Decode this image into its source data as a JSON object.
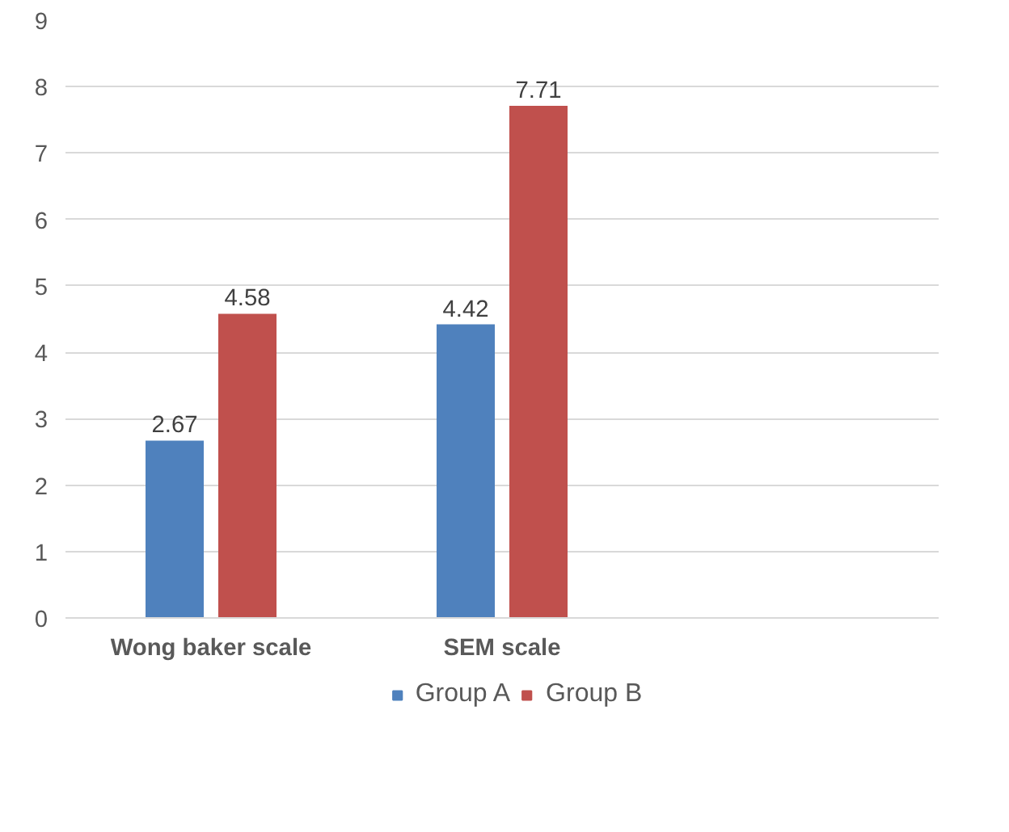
{
  "chart_data": {
    "type": "bar",
    "categories": [
      "Wong baker scale",
      "SEM scale",
      null
    ],
    "series": [
      {
        "name": "Group A",
        "color": "#4f81bd",
        "values": [
          2.67,
          4.42,
          null
        ]
      },
      {
        "name": "Group B",
        "color": "#c0504d",
        "values": [
          4.58,
          7.71,
          null
        ]
      }
    ],
    "ylim": [
      0,
      9
    ],
    "yticks": [
      0,
      1,
      2,
      3,
      4,
      5,
      6,
      7,
      8,
      9
    ],
    "grid": "y",
    "legend": "bottom",
    "data_labels": true
  }
}
